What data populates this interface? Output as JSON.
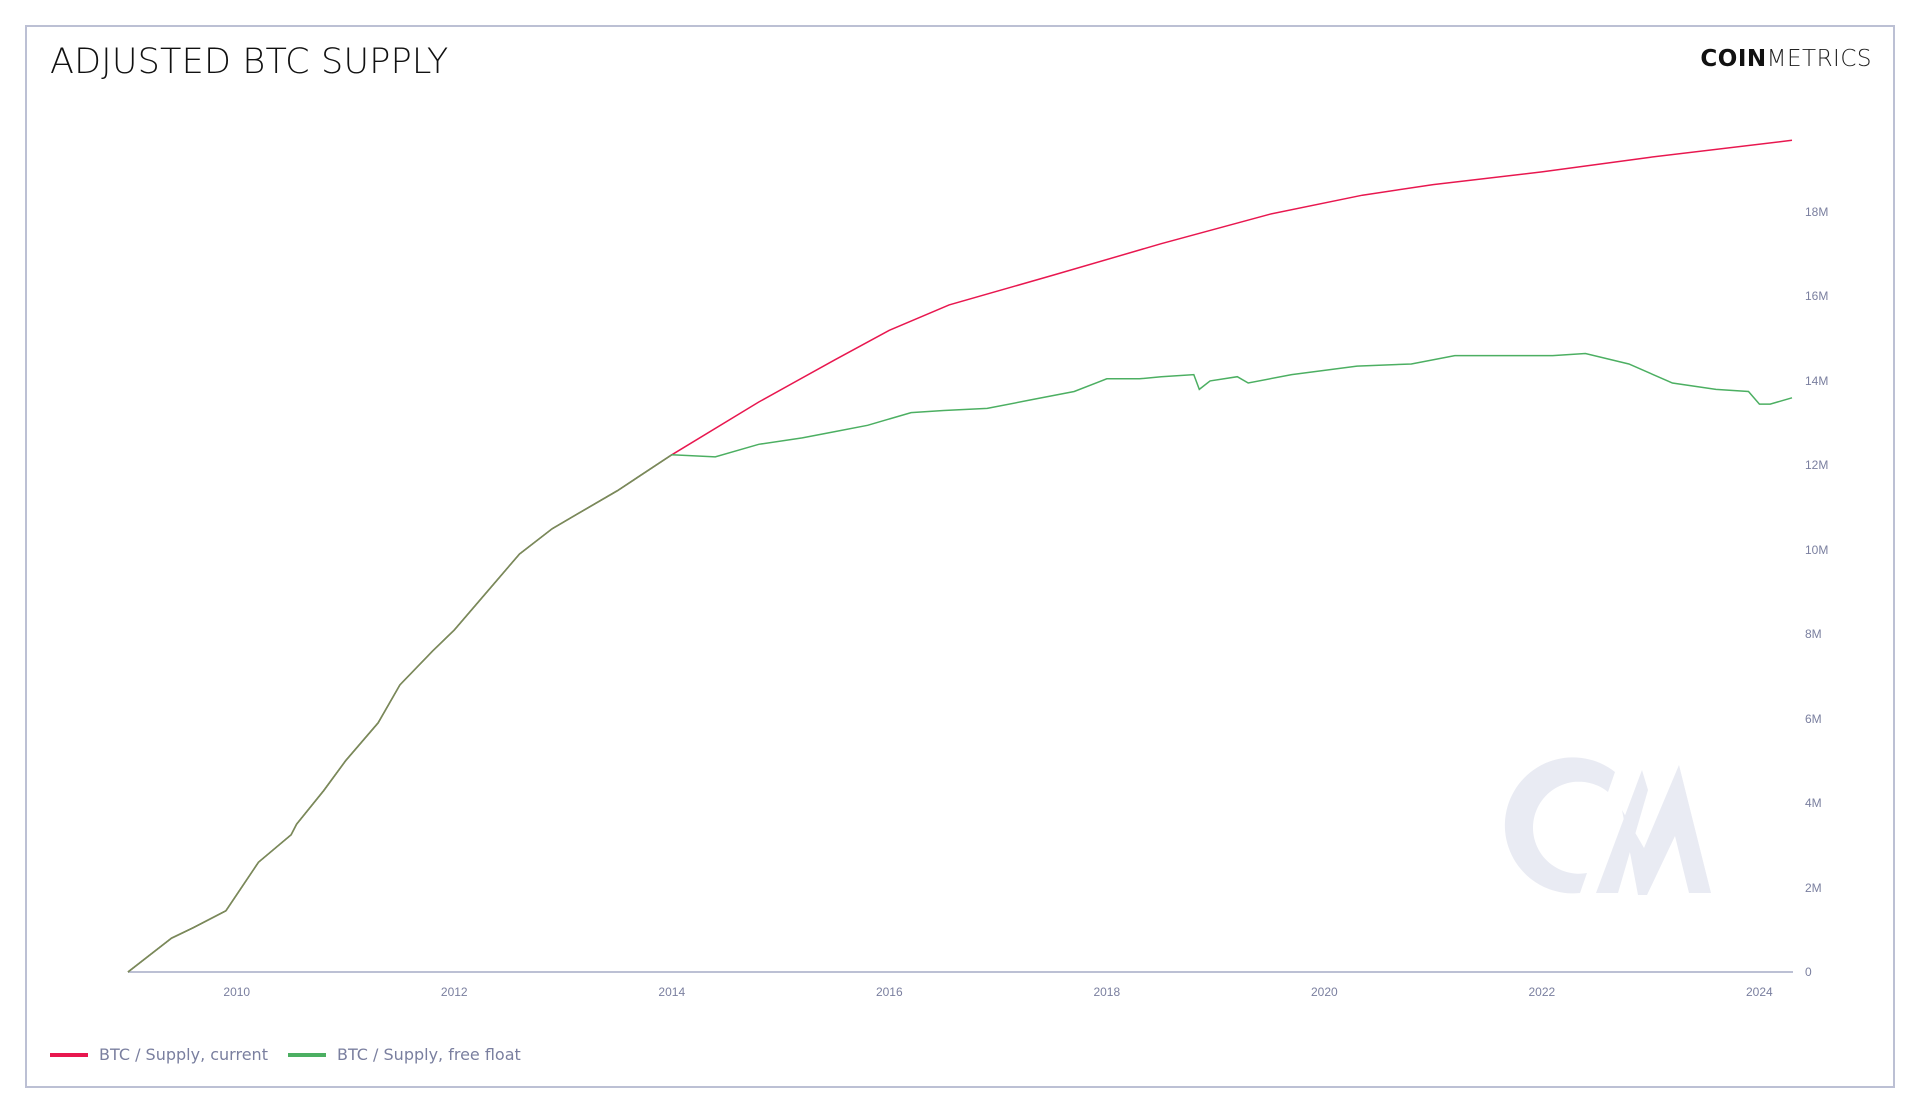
{
  "header": {
    "title": "ADJUSTED BTC SUPPLY",
    "logo_bold": "COIN",
    "logo_light": "METRICS",
    "watermark": "CM"
  },
  "colors": {
    "current": "#e8174f",
    "free_float": "#4caf62",
    "overlap": "#7a8a5a",
    "axis": "#bcc0d4",
    "label": "#7a7f9f",
    "watermark": "#e9ebf3"
  },
  "legend": [
    {
      "label": "BTC / Supply, current",
      "color": "#e8174f"
    },
    {
      "label": "BTC / Supply, free float",
      "color": "#4caf62"
    }
  ],
  "chart_data": {
    "type": "line",
    "title": "ADJUSTED BTC SUPPLY",
    "xlabel": "",
    "ylabel": "",
    "x_ticks": [
      "2010",
      "2012",
      "2014",
      "2016",
      "2018",
      "2020",
      "2022",
      "2024"
    ],
    "y_ticks": [
      "0",
      "2M",
      "4M",
      "6M",
      "8M",
      "10M",
      "12M",
      "14M",
      "16M",
      "18M"
    ],
    "xlim": [
      2009.0,
      2024.3
    ],
    "ylim": [
      0,
      20000000
    ],
    "grid": false,
    "legend_position": "bottom-left",
    "y_axis_side": "right",
    "series": [
      {
        "name": "BTC / Supply, current",
        "x": [
          2009.0,
          2009.4,
          2009.6,
          2009.9,
          2010.2,
          2010.5,
          2010.55,
          2010.8,
          2011.0,
          2011.3,
          2011.5,
          2011.8,
          2012.0,
          2012.3,
          2012.6,
          2012.9,
          2013.1,
          2013.5,
          2014.0,
          2014.8,
          2015.5,
          2016.0,
          2016.55,
          2017.5,
          2018.5,
          2019.5,
          2020.35,
          2021.0,
          2022.0,
          2023.0,
          2024.3
        ],
        "values": [
          0,
          800000,
          1050000,
          1450000,
          2600000,
          3250000,
          3500000,
          4300000,
          5000000,
          5900000,
          6800000,
          7600000,
          8100000,
          9000000,
          9900000,
          10500000,
          10800000,
          11400000,
          12250000,
          13500000,
          14500000,
          15200000,
          15800000,
          16500000,
          17250000,
          17950000,
          18400000,
          18650000,
          18950000,
          19300000,
          19700000
        ]
      },
      {
        "name": "BTC / Supply, free float",
        "x": [
          2009.0,
          2009.4,
          2009.6,
          2009.9,
          2010.2,
          2010.5,
          2010.55,
          2010.8,
          2011.0,
          2011.3,
          2011.5,
          2011.8,
          2012.0,
          2012.3,
          2012.6,
          2012.9,
          2013.1,
          2013.5,
          2014.0,
          2014.4,
          2014.8,
          2015.2,
          2015.5,
          2015.8,
          2016.2,
          2016.5,
          2016.9,
          2017.3,
          2017.7,
          2018.0,
          2018.3,
          2018.5,
          2018.8,
          2018.85,
          2018.95,
          2019.2,
          2019.3,
          2019.7,
          2020.3,
          2020.8,
          2021.2,
          2021.8,
          2022.1,
          2022.4,
          2022.8,
          2023.2,
          2023.6,
          2023.9,
          2024.0,
          2024.1,
          2024.3
        ],
        "values": [
          0,
          800000,
          1050000,
          1450000,
          2600000,
          3250000,
          3500000,
          4300000,
          5000000,
          5900000,
          6800000,
          7600000,
          8100000,
          9000000,
          9900000,
          10500000,
          10800000,
          11400000,
          12250000,
          12200000,
          12500000,
          12650000,
          12800000,
          12950000,
          13250000,
          13300000,
          13350000,
          13550000,
          13750000,
          14050000,
          14050000,
          14100000,
          14150000,
          13800000,
          14000000,
          14100000,
          13950000,
          14150000,
          14350000,
          14400000,
          14600000,
          14600000,
          14600000,
          14650000,
          14400000,
          13950000,
          13800000,
          13750000,
          13450000,
          13450000,
          13600000
        ]
      }
    ]
  }
}
